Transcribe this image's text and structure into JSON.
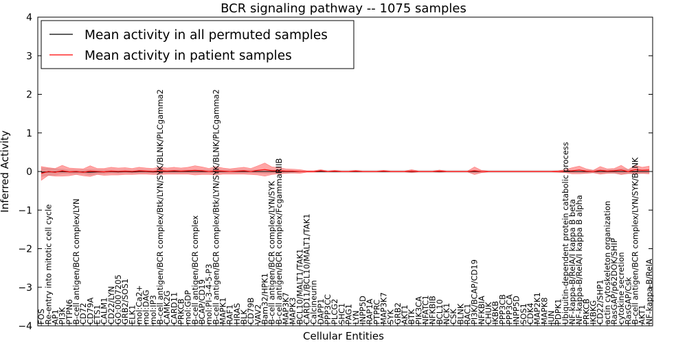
{
  "chart_data": {
    "type": "line",
    "title": "BCR signaling pathway -- 1075 samples",
    "xlabel": "Cellular Entities",
    "ylabel": "Inferred Activity",
    "ylim": [
      -4,
      4
    ],
    "yticks": [
      -4,
      -3,
      -2,
      -1,
      0,
      1,
      2,
      3,
      4
    ],
    "legend_position": "top-left",
    "grid": false,
    "categories": [
      "FOS",
      "Re-entry into mitotic cell cycle",
      "AP1",
      "PI3K",
      "PTPN6",
      "B-cell antigen/BCR complex/LYN",
      "CD72",
      "CD79A",
      "ETS1",
      "CALM1",
      "CD22/LYN",
      "GO:0007205",
      "GRB2/SOS1",
      "ELK1",
      "mol:Ca2+",
      "mol:DAG",
      "mol:IP3",
      "B-cell antigen/BCR complex/Btk/LYN/SYK/BLNK/PLCgamma2",
      "CAMK2G",
      "CARD11",
      "PRKCB",
      "mol:GDP",
      "B-cell antigen/BCR complex",
      "BCAP/CD19",
      "mol:PI-3-4-5-P3",
      "B-cell antigen/BCR complex/Btk/LYN/SYK/BLNK/PLCgamma2",
      "MAPK1",
      "RAF1",
      "HRAS",
      "BLK",
      "CD79B",
      "VAV2",
      "Bam32/HPK1",
      "B-cell antigen/BCR complex/LYN/SYK",
      "B-cell antigen/BCR complex/FcgammaRIIB",
      "MAP3K7",
      "MAPK3",
      "BCL10/MALT1/TAK1",
      "CARD11/BCL10/MALT1/TAK1",
      "Calcineurin",
      "DAPP1",
      "PPP3CC",
      "PLCG2",
      "SHC1",
      "PAG1",
      "LYN",
      "INPP5D",
      "RAP1A",
      "PTPRC",
      "MAP3K7",
      "SYK",
      "GRB2",
      "AKT1",
      "BTK",
      "PIK3CA",
      "NFATC1",
      "NFKBIB",
      "BCL10",
      "NCK1",
      "CSK",
      "BLNK",
      "RAC1",
      "PI3K/BCAP/CD19",
      "NFKBIA",
      "CHUK",
      "IKBKB",
      "PPP3CB",
      "PPP3CA",
      "INPP5D",
      "SOS1",
      "CDK4",
      "MAP2K1",
      "MAPK8",
      "JUN",
      "PDPK1",
      "Ubiquitin-dependent protein catabolic process",
      "NF-kappa-B/RelA/I kappa B beta",
      "NF-kappa-B/RelA/I kappa B alpha",
      "PRKCB",
      "IKBKG",
      "CD22/SHP1",
      "actin cytoskeleton organization",
      "RasGAP/p62DOK/SHIP",
      "cytokine secretion",
      "RasGAP/Csk",
      "B-cell antigen/BCR complex/LYN/SYK/BLNK",
      "AKT1",
      "NF-kappa-B/RelA"
    ],
    "series": [
      {
        "name": "Mean activity in all permuted samples",
        "color": "#000000",
        "values": [
          -0.02,
          -0.01,
          -0.01,
          0.0,
          -0.01,
          -0.01,
          -0.01,
          -0.02,
          -0.01,
          -0.01,
          0.0,
          -0.01,
          0.0,
          -0.01,
          0.0,
          0.0,
          -0.01,
          0.0,
          0.0,
          0.0,
          0.0,
          0.0,
          0.0,
          0.0,
          0.0,
          0.0,
          0.0,
          0.0,
          0.0,
          0.0,
          0.0,
          0.0,
          0.0,
          0.0,
          0.0,
          0.0,
          0.0,
          0.0,
          0.0,
          0.0,
          0.0,
          0.0,
          0.0,
          0.0,
          0.0,
          0.0,
          0.0,
          0.0,
          0.0,
          0.0,
          0.0,
          0.0,
          0.0,
          0.0,
          0.0,
          0.0,
          0.0,
          0.0,
          0.0,
          0.0,
          0.0,
          0.0,
          0.0,
          0.0,
          0.0,
          0.0,
          0.0,
          0.0,
          0.0,
          0.0,
          0.0,
          0.0,
          0.0,
          0.0,
          0.0,
          0.0,
          0.0,
          0.0,
          0.0,
          0.0,
          0.0,
          0.0,
          0.0,
          0.0,
          0.0,
          0.0,
          0.0,
          0.0
        ],
        "spread": [
          0.12,
          0.1,
          0.09,
          0.07,
          0.06,
          0.06,
          0.06,
          0.08,
          0.06,
          0.06,
          0.05,
          0.05,
          0.05,
          0.05,
          0.05,
          0.05,
          0.05,
          0.05,
          0.05,
          0.05,
          0.05,
          0.05,
          0.05,
          0.05,
          0.05,
          0.05,
          0.05,
          0.05,
          0.05,
          0.05,
          0.05,
          0.05,
          0.06,
          0.06,
          0.05,
          0.04,
          0.03,
          0.03,
          0.02,
          0.02,
          0.04,
          0.04,
          0.04,
          0.04,
          0.04,
          0.04,
          0.04,
          0.04,
          0.04,
          0.04,
          0.04,
          0.04,
          0.04,
          0.04,
          0.04,
          0.04,
          0.04,
          0.04,
          0.04,
          0.04,
          0.04,
          0.04,
          0.04,
          0.04,
          0.04,
          0.04,
          0.04,
          0.04,
          0.04,
          0.04,
          0.04,
          0.04,
          0.04,
          0.04,
          0.04,
          0.04,
          0.04,
          0.04,
          0.05,
          0.05,
          0.06,
          0.05,
          0.06,
          0.08,
          0.07,
          0.06,
          0.06,
          0.06
        ]
      },
      {
        "name": "Mean activity in patient samples",
        "color": "#ff0000",
        "values": [
          -0.05,
          0.0,
          -0.02,
          0.02,
          -0.01,
          0.0,
          -0.02,
          0.01,
          0.0,
          -0.01,
          0.01,
          0.0,
          0.01,
          0.0,
          0.02,
          0.01,
          0.0,
          0.02,
          0.01,
          0.02,
          0.01,
          0.02,
          0.03,
          0.02,
          0.0,
          0.02,
          0.01,
          0.0,
          0.01,
          0.02,
          0.0,
          0.03,
          0.05,
          0.02,
          0.02,
          0.01,
          0.01,
          0.0,
          0.0,
          0.0,
          0.02,
          0.0,
          0.01,
          0.0,
          0.0,
          0.01,
          0.0,
          0.0,
          0.0,
          0.01,
          0.0,
          0.0,
          0.0,
          0.01,
          0.0,
          0.0,
          0.0,
          0.01,
          0.0,
          0.0,
          0.0,
          0.0,
          0.02,
          0.0,
          0.0,
          0.0,
          0.0,
          0.0,
          0.0,
          0.0,
          0.0,
          0.0,
          0.0,
          0.0,
          0.0,
          0.01,
          0.02,
          0.04,
          0.01,
          0.0,
          0.03,
          0.01,
          0.02,
          0.04,
          0.0,
          0.05,
          0.03,
          0.04
        ],
        "spread": [
          0.18,
          0.1,
          0.1,
          0.14,
          0.1,
          0.08,
          0.09,
          0.14,
          0.08,
          0.09,
          0.1,
          0.09,
          0.09,
          0.08,
          0.09,
          0.08,
          0.08,
          0.1,
          0.08,
          0.09,
          0.08,
          0.09,
          0.12,
          0.1,
          0.08,
          0.11,
          0.08,
          0.07,
          0.08,
          0.09,
          0.08,
          0.12,
          0.17,
          0.1,
          0.08,
          0.06,
          0.05,
          0.05,
          0.02,
          0.02,
          0.03,
          0.01,
          0.02,
          0.01,
          0.01,
          0.02,
          0.01,
          0.01,
          0.01,
          0.02,
          0.01,
          0.01,
          0.01,
          0.04,
          0.01,
          0.01,
          0.01,
          0.03,
          0.01,
          0.01,
          0.01,
          0.01,
          0.1,
          0.03,
          0.01,
          0.01,
          0.01,
          0.01,
          0.01,
          0.01,
          0.01,
          0.01,
          0.01,
          0.01,
          0.02,
          0.04,
          0.08,
          0.1,
          0.06,
          0.03,
          0.1,
          0.06,
          0.06,
          0.12,
          0.05,
          0.11,
          0.08,
          0.1
        ]
      }
    ]
  }
}
